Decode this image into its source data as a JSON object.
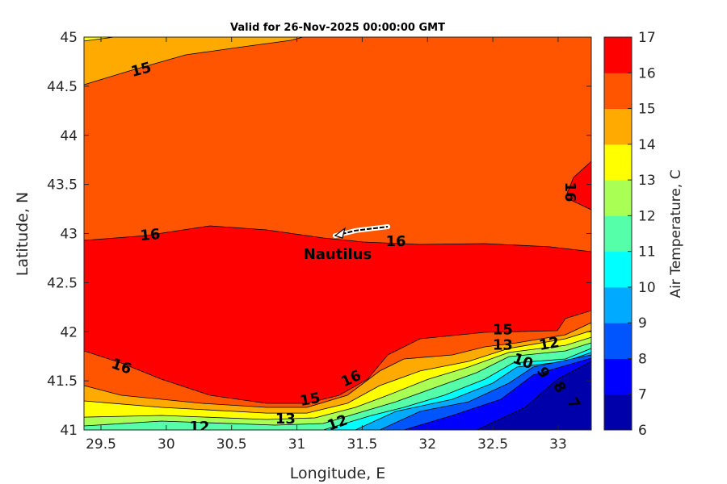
{
  "chart_data": {
    "type": "heatmap",
    "subtype": "filled-contour",
    "title": "Valid for 26-Nov-2025 00:00:00 GMT",
    "xlabel": "Longitude, E",
    "ylabel": "Latitude, N",
    "xlim": [
      29.37,
      33.25
    ],
    "ylim": [
      41,
      45
    ],
    "xticks": [
      "29.5",
      "30",
      "30.5",
      "31",
      "31.5",
      "32",
      "32.5",
      "33"
    ],
    "xtick_values": [
      29.5,
      30,
      30.5,
      31,
      31.5,
      32,
      32.5,
      33
    ],
    "yticks": [
      "41",
      "41.5",
      "42",
      "42.5",
      "43",
      "43.5",
      "44",
      "44.5",
      "45"
    ],
    "ytick_values": [
      41,
      41.5,
      42,
      42.5,
      43,
      43.5,
      44,
      44.5,
      45
    ],
    "colorbar": {
      "label": "Air Temperature, C",
      "levels": [
        6,
        7,
        8,
        9,
        10,
        11,
        12,
        13,
        14,
        15,
        16,
        17
      ],
      "ticks": [
        "6",
        "7",
        "8",
        "9",
        "10",
        "11",
        "12",
        "13",
        "14",
        "15",
        "16",
        "17"
      ],
      "colors": [
        "#0000aa",
        "#0000ff",
        "#0055ff",
        "#00aaff",
        "#00ffff",
        "#55ffaa",
        "#aaff55",
        "#ffff00",
        "#ffaa00",
        "#ff5500",
        "#ff0000",
        "#aa0000"
      ]
    },
    "background_band_color": "#ff5500",
    "regions": [
      {
        "level": 14,
        "color": "#ffaa00",
        "points": [
          [
            29.37,
            44.515
          ],
          [
            29.716,
            44.655
          ],
          [
            30.149,
            44.819
          ],
          [
            30.582,
            44.901
          ],
          [
            30.953,
            44.967
          ],
          [
            31.046,
            45
          ],
          [
            29.37,
            45
          ]
        ]
      },
      {
        "level": 13,
        "color": "#ffff00",
        "points": [
          [
            29.37,
            44.96
          ],
          [
            29.6,
            45
          ],
          [
            29.37,
            45
          ]
        ]
      },
      {
        "level": 16,
        "color": "#ff0000",
        "points": [
          [
            29.37,
            42.93
          ],
          [
            29.84,
            42.979
          ],
          [
            30.335,
            43.078
          ],
          [
            30.768,
            43.037
          ],
          [
            31.201,
            42.955
          ],
          [
            31.51,
            42.914
          ],
          [
            31.943,
            42.889
          ],
          [
            32.438,
            42.897
          ],
          [
            32.932,
            42.865
          ],
          [
            33.254,
            42.815
          ],
          [
            33.254,
            42.216
          ],
          [
            33.056,
            42.134
          ],
          [
            32.994,
            42.011
          ],
          [
            32.438,
            41.994
          ],
          [
            31.943,
            41.928
          ],
          [
            31.696,
            41.764
          ],
          [
            31.541,
            41.517
          ],
          [
            31.324,
            41.353
          ],
          [
            31.077,
            41.271
          ],
          [
            30.768,
            41.271
          ],
          [
            30.335,
            41.353
          ],
          [
            29.964,
            41.517
          ],
          [
            29.655,
            41.682
          ],
          [
            29.37,
            41.805
          ]
        ]
      },
      {
        "level": 16,
        "color": "#ff0000",
        "points": [
          [
            33.254,
            43.735
          ],
          [
            33.118,
            43.571
          ],
          [
            33.056,
            43.366
          ],
          [
            33.254,
            43.242
          ]
        ]
      }
    ],
    "lower_contours": [
      {
        "level": 15,
        "fill_below": "#ffaa00",
        "points": [
          [
            29.37,
            41.452
          ],
          [
            29.655,
            41.353
          ],
          [
            30.273,
            41.271
          ],
          [
            30.768,
            41.23
          ],
          [
            31.077,
            41.23
          ],
          [
            31.386,
            41.353
          ],
          [
            31.634,
            41.6
          ],
          [
            31.819,
            41.723
          ],
          [
            32.19,
            41.764
          ],
          [
            32.438,
            41.846
          ],
          [
            32.685,
            41.887
          ],
          [
            33.056,
            41.969
          ],
          [
            33.254,
            42.092
          ]
        ]
      },
      {
        "level": 14,
        "fill_below": "#ffff00",
        "points": [
          [
            29.37,
            41.296
          ],
          [
            29.964,
            41.23
          ],
          [
            30.768,
            41.172
          ],
          [
            31.077,
            41.172
          ],
          [
            31.386,
            41.271
          ],
          [
            31.634,
            41.452
          ],
          [
            31.943,
            41.6
          ],
          [
            32.314,
            41.698
          ],
          [
            32.623,
            41.83
          ],
          [
            33.056,
            41.928
          ],
          [
            33.254,
            42.011
          ]
        ]
      },
      {
        "level": 13,
        "fill_below": "#aaff55",
        "points": [
          [
            29.37,
            41.131
          ],
          [
            29.964,
            41.148
          ],
          [
            30.768,
            41.107
          ],
          [
            31.139,
            41.123
          ],
          [
            31.448,
            41.23
          ],
          [
            31.696,
            41.353
          ],
          [
            32.005,
            41.517
          ],
          [
            32.314,
            41.641
          ],
          [
            32.623,
            41.789
          ],
          [
            33.056,
            41.862
          ],
          [
            33.254,
            41.944
          ]
        ]
      },
      {
        "level": 12,
        "fill_below": "#55ffaa",
        "points": [
          [
            29.37,
            41.041
          ],
          [
            29.964,
            41.09
          ],
          [
            30.83,
            41.049
          ],
          [
            31.201,
            41.066
          ],
          [
            31.51,
            41.189
          ],
          [
            31.757,
            41.287
          ],
          [
            32.067,
            41.435
          ],
          [
            32.376,
            41.583
          ],
          [
            32.623,
            41.747
          ],
          [
            33.056,
            41.805
          ],
          [
            33.254,
            41.887
          ]
        ]
      },
      {
        "level": 11,
        "fill_below": "#00ffff",
        "points": [
          [
            31.201,
            41
          ],
          [
            31.572,
            41.148
          ],
          [
            31.819,
            41.23
          ],
          [
            32.128,
            41.353
          ],
          [
            32.438,
            41.517
          ],
          [
            32.654,
            41.682
          ],
          [
            33.056,
            41.723
          ],
          [
            33.254,
            41.83
          ]
        ]
      },
      {
        "level": 10,
        "fill_below": "#00aaff",
        "points": [
          [
            31.448,
            41
          ],
          [
            31.757,
            41.189
          ],
          [
            32.19,
            41.312
          ],
          [
            32.499,
            41.476
          ],
          [
            32.685,
            41.641
          ],
          [
            33.056,
            41.698
          ],
          [
            33.254,
            41.789
          ]
        ]
      },
      {
        "level": 9,
        "fill_below": "#0055ff",
        "points": [
          [
            31.634,
            41
          ],
          [
            31.943,
            41.189
          ],
          [
            32.314,
            41.287
          ],
          [
            32.623,
            41.476
          ],
          [
            32.809,
            41.641
          ],
          [
            33.254,
            41.764
          ]
        ]
      },
      {
        "level": 8,
        "fill_below": "#0000ff",
        "points": [
          [
            31.819,
            41
          ],
          [
            32.19,
            41.148
          ],
          [
            32.561,
            41.312
          ],
          [
            32.809,
            41.559
          ],
          [
            33.254,
            41.731
          ]
        ]
      },
      {
        "level": 7,
        "fill_below": "#0000aa",
        "points": [
          [
            32.376,
            41
          ],
          [
            32.747,
            41.23
          ],
          [
            32.994,
            41.517
          ],
          [
            33.254,
            41.698
          ]
        ]
      }
    ],
    "contour_labels": [
      {
        "text": "15",
        "lon": 29.809,
        "lat": 44.663,
        "rot": -15
      },
      {
        "text": "16",
        "lon": 29.877,
        "lat": 42.979,
        "rot": -5
      },
      {
        "text": "16",
        "lon": 31.708,
        "lat": 42.914,
        "rot": 0
      },
      {
        "text": "16",
        "lon": 33.087,
        "lat": 43.423,
        "rot": 90
      },
      {
        "text": "16",
        "lon": 29.655,
        "lat": 41.641,
        "rot": 20
      },
      {
        "text": "16",
        "lon": 31.417,
        "lat": 41.517,
        "rot": -25
      },
      {
        "text": "15",
        "lon": 31.046,
        "lat": 41.23,
        "rot": -10
      },
      {
        "text": "13",
        "lon": 30.968,
        "lat": 41.09,
        "rot": 0
      },
      {
        "text": "12",
        "lon": 30.254,
        "lat": 41.025,
        "rot": 0
      },
      {
        "text": "12",
        "lon": 31.312,
        "lat": 41.066,
        "rot": -20
      },
      {
        "text": "15",
        "lon": 32.7,
        "lat": 41.95,
        "rot": 0
      },
      {
        "text": "13",
        "lon": 32.7,
        "lat": 41.89,
        "rot": 0
      },
      {
        "text": "12",
        "lon": 32.932,
        "lat": 41.87,
        "rot": -10
      },
      {
        "text": "10",
        "lon": 32.76,
        "lat": 41.8,
        "rot": 20
      },
      {
        "text": "9",
        "lon": 32.85,
        "lat": 41.77,
        "rot": 60
      },
      {
        "text": "8",
        "lon": 32.92,
        "lat": 41.72,
        "rot": 60
      },
      {
        "text": "7",
        "lon": 32.96,
        "lat": 41.63,
        "rot": 60
      }
    ],
    "vessel": {
      "name": "Nautilus",
      "track": [
        [
          31.293,
          42.979
        ],
        [
          31.45,
          43.03
        ],
        [
          31.696,
          43.07
        ]
      ],
      "label_lon": 31.386,
      "label_lat": 42.832
    }
  }
}
